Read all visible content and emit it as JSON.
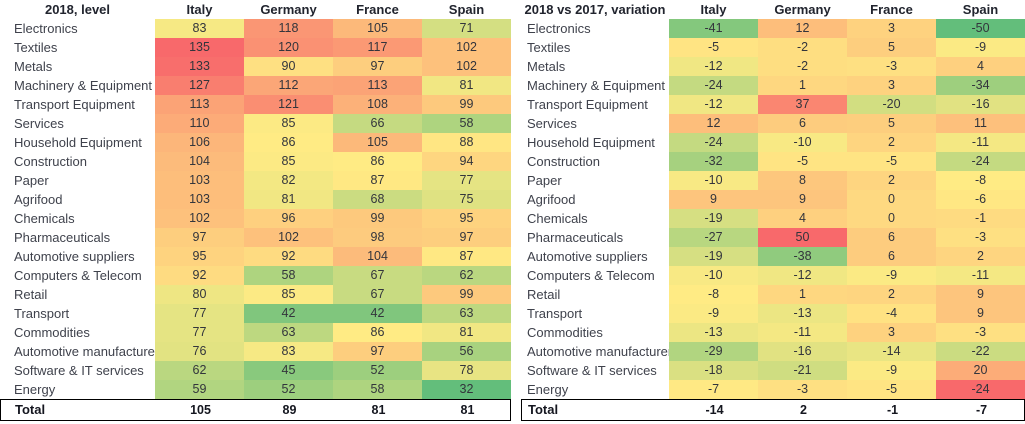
{
  "palette": {
    "heat_low": "#63BE7B",
    "heat_mid": "#FFEB84",
    "heat_high": "#F8696B",
    "total_border": "#000000",
    "label_text": "#3F424C",
    "header_text": "#21242E",
    "background": "#FFFFFF"
  },
  "chart_data": [
    {
      "type": "heatmap",
      "title": "2018, level",
      "columns": [
        "Italy",
        "Germany",
        "France",
        "Spain"
      ],
      "rows": [
        {
          "label": "Electronics",
          "values": [
            83,
            118,
            105,
            71
          ]
        },
        {
          "label": "Textiles",
          "values": [
            135,
            120,
            117,
            102
          ]
        },
        {
          "label": "Metals",
          "values": [
            133,
            90,
            97,
            102
          ]
        },
        {
          "label": "Machinery & Equipment",
          "values": [
            127,
            112,
            113,
            81
          ]
        },
        {
          "label": "Transport Equipment",
          "values": [
            113,
            121,
            108,
            99
          ]
        },
        {
          "label": "Services",
          "values": [
            110,
            85,
            66,
            58
          ]
        },
        {
          "label": "Household Equipment",
          "values": [
            106,
            86,
            105,
            88
          ]
        },
        {
          "label": "Construction",
          "values": [
            104,
            85,
            86,
            94
          ]
        },
        {
          "label": "Paper",
          "values": [
            103,
            82,
            87,
            77
          ]
        },
        {
          "label": "Agrifood",
          "values": [
            103,
            81,
            68,
            75
          ]
        },
        {
          "label": "Chemicals",
          "values": [
            102,
            96,
            99,
            95
          ]
        },
        {
          "label": "Pharmaceuticals",
          "values": [
            97,
            102,
            98,
            97
          ]
        },
        {
          "label": "Automotive suppliers",
          "values": [
            95,
            92,
            104,
            87
          ]
        },
        {
          "label": "Computers & Telecom",
          "values": [
            92,
            58,
            67,
            62
          ]
        },
        {
          "label": "Retail",
          "values": [
            80,
            85,
            67,
            99
          ]
        },
        {
          "label": "Transport",
          "values": [
            77,
            42,
            42,
            63
          ]
        },
        {
          "label": "Commodities",
          "values": [
            77,
            63,
            86,
            81
          ]
        },
        {
          "label": "Automotive manufacturers",
          "values": [
            76,
            83,
            97,
            56
          ]
        },
        {
          "label": "Software & IT services",
          "values": [
            62,
            45,
            52,
            78
          ]
        },
        {
          "label": "Energy",
          "values": [
            59,
            52,
            58,
            32
          ]
        }
      ],
      "total": {
        "label": "Total",
        "values": [
          105,
          89,
          81,
          81
        ]
      },
      "colormap": {
        "min": 32,
        "mid": 86,
        "max": 135
      },
      "color_overrides": []
    },
    {
      "type": "heatmap",
      "title": "2018 vs 2017, variation",
      "columns": [
        "Italy",
        "Germany",
        "France",
        "Spain"
      ],
      "rows": [
        {
          "label": "Electronics",
          "values": [
            -41,
            12,
            3,
            -50
          ]
        },
        {
          "label": "Textiles",
          "values": [
            -5,
            -2,
            5,
            -9
          ]
        },
        {
          "label": "Metals",
          "values": [
            -12,
            -2,
            -3,
            4
          ]
        },
        {
          "label": "Machinery & Equipment",
          "values": [
            -24,
            1,
            3,
            -34
          ]
        },
        {
          "label": "Transport Equipment",
          "values": [
            -12,
            37,
            -20,
            -16
          ]
        },
        {
          "label": "Services",
          "values": [
            12,
            6,
            5,
            11
          ]
        },
        {
          "label": "Household Equipment",
          "values": [
            -24,
            -10,
            2,
            -11
          ]
        },
        {
          "label": "Construction",
          "values": [
            -32,
            -5,
            -5,
            -24
          ]
        },
        {
          "label": "Paper",
          "values": [
            -10,
            8,
            2,
            -8
          ]
        },
        {
          "label": "Agrifood",
          "values": [
            9,
            9,
            0,
            -6
          ]
        },
        {
          "label": "Chemicals",
          "values": [
            -19,
            4,
            0,
            -1
          ]
        },
        {
          "label": "Pharmaceuticals",
          "values": [
            -27,
            50,
            6,
            -3
          ]
        },
        {
          "label": "Automotive suppliers",
          "values": [
            -19,
            -38,
            6,
            2
          ]
        },
        {
          "label": "Computers & Telecom",
          "values": [
            -10,
            -12,
            -9,
            -11
          ]
        },
        {
          "label": "Retail",
          "values": [
            -8,
            1,
            2,
            9
          ]
        },
        {
          "label": "Transport",
          "values": [
            -9,
            -13,
            -4,
            9
          ]
        },
        {
          "label": "Commodities",
          "values": [
            -13,
            -11,
            3,
            -3
          ]
        },
        {
          "label": "Automotive manufacturers",
          "values": [
            -29,
            -16,
            -14,
            -22
          ]
        },
        {
          "label": "Software & IT services",
          "values": [
            -18,
            -21,
            -9,
            20
          ]
        },
        {
          "label": "Energy",
          "values": [
            -7,
            -3,
            -5,
            -24
          ]
        }
      ],
      "total": {
        "label": "Total",
        "values": [
          -14,
          2,
          -1,
          -7
        ]
      },
      "colormap": {
        "min": -50,
        "mid": -8,
        "max": 50
      },
      "color_overrides": [
        {
          "row_index": 19,
          "col_index": 3,
          "hex": "#F8696B"
        }
      ]
    }
  ]
}
